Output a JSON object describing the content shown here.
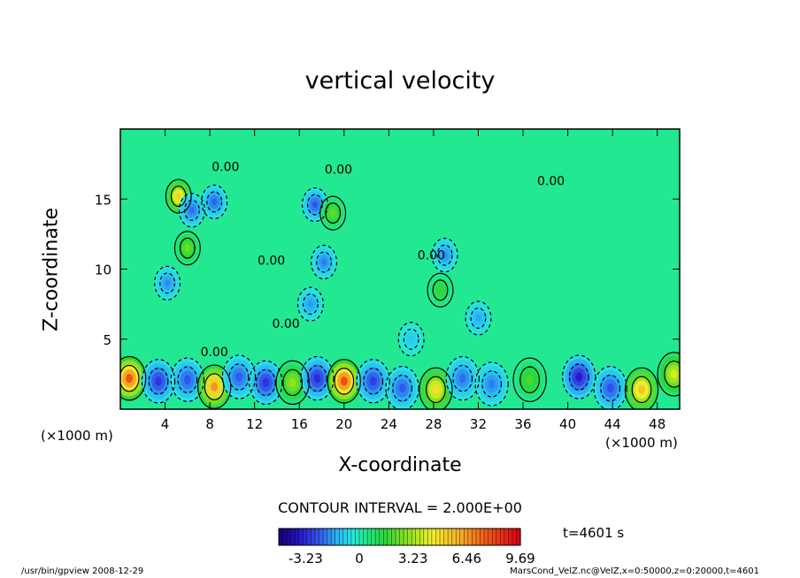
{
  "chart_data": {
    "type": "heatmap",
    "title": "vertical velocity",
    "xlabel": "X-coordinate",
    "ylabel": "Z-coordinate",
    "x_unit": "(×1000 m)",
    "y_unit": "",
    "xlim": [
      0,
      50
    ],
    "ylim": [
      0,
      20
    ],
    "x_ticks": [
      4,
      8,
      12,
      16,
      20,
      24,
      28,
      32,
      36,
      40,
      44,
      48
    ],
    "y_ticks": [
      5,
      10,
      15
    ],
    "contour_label": "0.00",
    "contour_interval_label": "CONTOUR INTERVAL = 2.000E+00",
    "colorbar": {
      "min": -4.85,
      "max": 9.69,
      "tick_values": [
        -3.23,
        0,
        3.23,
        6.46,
        9.69
      ],
      "tick_labels": [
        "-3.23",
        "0",
        "3.23",
        "6.46",
        "9.69"
      ]
    },
    "cells_lower": [
      {
        "x": 0.8,
        "z": 2.2,
        "w": 9.3
      },
      {
        "x": 3.4,
        "z": 2.0,
        "w": -3.6
      },
      {
        "x": 6.0,
        "z": 2.1,
        "w": -3.0
      },
      {
        "x": 8.4,
        "z": 1.6,
        "w": 7.8
      },
      {
        "x": 10.6,
        "z": 2.3,
        "w": -2.9
      },
      {
        "x": 13.0,
        "z": 1.9,
        "w": -3.7
      },
      {
        "x": 15.4,
        "z": 1.9,
        "w": 3.6
      },
      {
        "x": 17.6,
        "z": 2.2,
        "w": -3.8
      },
      {
        "x": 20.0,
        "z": 2.0,
        "w": 9.4
      },
      {
        "x": 22.6,
        "z": 2.0,
        "w": -3.4
      },
      {
        "x": 25.2,
        "z": 1.5,
        "w": -2.9
      },
      {
        "x": 28.2,
        "z": 1.4,
        "w": 5.8
      },
      {
        "x": 30.6,
        "z": 2.2,
        "w": -2.6
      },
      {
        "x": 33.2,
        "z": 1.8,
        "w": -2.4
      },
      {
        "x": 36.6,
        "z": 2.1,
        "w": 2.4
      },
      {
        "x": 41.0,
        "z": 2.3,
        "w": -4.2
      },
      {
        "x": 43.8,
        "z": 1.5,
        "w": -3.1
      },
      {
        "x": 46.6,
        "z": 1.4,
        "w": 6.6
      },
      {
        "x": 49.5,
        "z": 2.5,
        "w": 4.8
      }
    ],
    "cells_upper": [
      {
        "x": 5.2,
        "z": 15.2,
        "w": 6.2
      },
      {
        "x": 6.4,
        "z": 14.2,
        "w": -2.6
      },
      {
        "x": 8.4,
        "z": 14.8,
        "w": -2.8
      },
      {
        "x": 6.0,
        "z": 11.5,
        "w": 3.0
      },
      {
        "x": 4.2,
        "z": 9.0,
        "w": -2.2
      },
      {
        "x": 17.4,
        "z": 14.6,
        "w": -3.0
      },
      {
        "x": 19.0,
        "z": 14.0,
        "w": 2.8
      },
      {
        "x": 18.2,
        "z": 10.5,
        "w": -2.4
      },
      {
        "x": 17.0,
        "z": 7.5,
        "w": -2.0
      },
      {
        "x": 29.0,
        "z": 11.0,
        "w": -2.2
      },
      {
        "x": 28.6,
        "z": 8.5,
        "w": 2.0
      },
      {
        "x": 32.0,
        "z": 6.5,
        "w": -1.8
      },
      {
        "x": 26.0,
        "z": 5.0,
        "w": -1.2
      }
    ],
    "contour_line_labels": [
      {
        "x": 9.4,
        "z": 17.0,
        "text": "0.00"
      },
      {
        "x": 19.5,
        "z": 16.8,
        "text": "0.00"
      },
      {
        "x": 38.5,
        "z": 16.0,
        "text": "0.00"
      },
      {
        "x": 13.5,
        "z": 10.3,
        "text": "0.00"
      },
      {
        "x": 14.8,
        "z": 5.8,
        "text": "0.00"
      },
      {
        "x": 27.8,
        "z": 10.7,
        "text": "0.00"
      },
      {
        "x": 8.4,
        "z": 3.8,
        "text": "0.00"
      }
    ]
  },
  "labels": {
    "title": "vertical velocity",
    "xlabel": "X-coordinate",
    "ylabel": "Z-coordinate",
    "x_unit_left": "(×1000 m)",
    "x_unit_right": "(×1000 m)",
    "contour_interval": "CONTOUR INTERVAL = 2.000E+00",
    "time": "t=4601 s",
    "footer_left": "/usr/bin/gpview   2008-12-29",
    "footer_right": "MarsCond_VelZ.nc@VelZ,x=0:50000,z=0:20000,t=4601"
  },
  "colors": {
    "background_field": "#22e892",
    "frame": "#000000"
  }
}
